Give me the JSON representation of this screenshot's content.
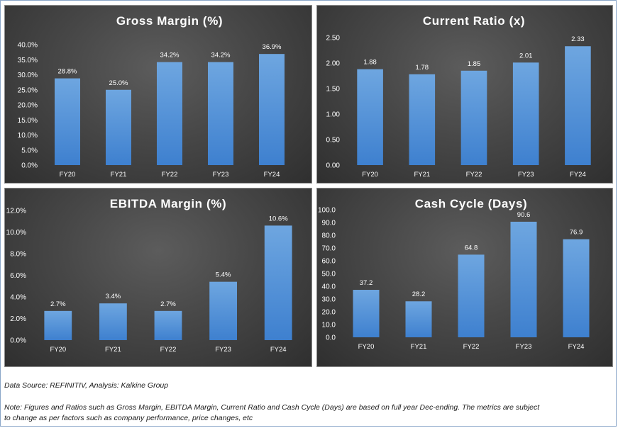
{
  "colors": {
    "bar_top": "#6ea6e0",
    "bar_bottom": "#3e80cf",
    "panel": "#474747",
    "text": "#ffffff"
  },
  "chart_data": [
    {
      "type": "bar",
      "title": "Gross Margin (%)",
      "categories": [
        "FY20",
        "FY21",
        "FY22",
        "FY23",
        "FY24"
      ],
      "values": [
        28.8,
        25.0,
        34.2,
        34.2,
        36.9
      ],
      "value_labels": [
        "28.8%",
        "25.0%",
        "34.2%",
        "34.2%",
        "36.9%"
      ],
      "yticks": [
        "0.0%",
        "5.0%",
        "10.0%",
        "15.0%",
        "20.0%",
        "25.0%",
        "30.0%",
        "35.0%",
        "40.0%"
      ],
      "ylim": [
        0,
        40
      ],
      "xlabel": "",
      "ylabel": ""
    },
    {
      "type": "bar",
      "title": "Current Ratio (x)",
      "categories": [
        "FY20",
        "FY21",
        "FY22",
        "FY23",
        "FY24"
      ],
      "values": [
        1.88,
        1.78,
        1.85,
        2.01,
        2.33
      ],
      "value_labels": [
        "1.88",
        "1.78",
        "1.85",
        "2.01",
        "2.33"
      ],
      "yticks": [
        "0.00",
        "0.50",
        "1.00",
        "1.50",
        "2.00",
        "2.50"
      ],
      "ylim": [
        0,
        2.5
      ],
      "xlabel": "",
      "ylabel": ""
    },
    {
      "type": "bar",
      "title": "EBITDA Margin (%)",
      "categories": [
        "FY20",
        "FY21",
        "FY22",
        "FY23",
        "FY24"
      ],
      "values": [
        2.7,
        3.4,
        2.7,
        5.4,
        10.6
      ],
      "value_labels": [
        "2.7%",
        "3.4%",
        "2.7%",
        "5.4%",
        "10.6%"
      ],
      "yticks": [
        "0.0%",
        "2.0%",
        "4.0%",
        "6.0%",
        "8.0%",
        "10.0%",
        "12.0%"
      ],
      "ylim": [
        0,
        12
      ],
      "xlabel": "",
      "ylabel": ""
    },
    {
      "type": "bar",
      "title": "Cash Cycle (Days)",
      "categories": [
        "FY20",
        "FY21",
        "FY22",
        "FY23",
        "FY24"
      ],
      "values": [
        37.2,
        28.2,
        64.8,
        90.6,
        76.9
      ],
      "value_labels": [
        "37.2",
        "28.2",
        "64.8",
        "90.6",
        "76.9"
      ],
      "yticks": [
        "0.0",
        "10.0",
        "20.0",
        "30.0",
        "40.0",
        "50.0",
        "60.0",
        "70.0",
        "80.0",
        "90.0",
        "100.0"
      ],
      "ylim": [
        0,
        100
      ],
      "xlabel": "",
      "ylabel": ""
    }
  ],
  "footer": {
    "source": "Data Source: REFINITIV, Analysis: Kalkine Group",
    "note_line1": "Note: Figures and Ratios such as Gross Margin, EBITDA Margin, Current Ratio and Cash Cycle (Days) are based on full year Dec-ending. The metrics are subject",
    "note_line2": "to change as per factors such as company performance, price changes, etc"
  }
}
